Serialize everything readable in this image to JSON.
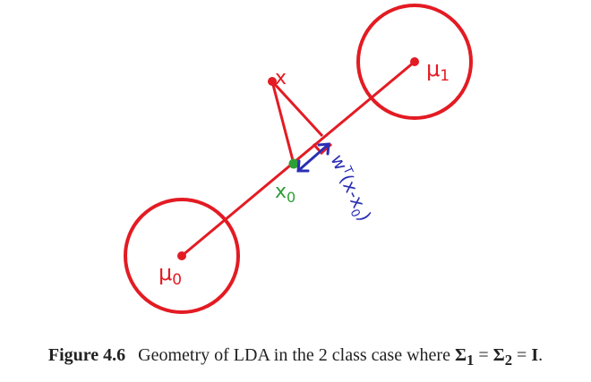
{
  "colors": {
    "red": "#e31b23",
    "green": "#2e9e36",
    "blue": "#2b2fb3",
    "caption": "#222222"
  },
  "diagram": {
    "mu0": "μ0",
    "mu1": "μ1",
    "x": "x",
    "x0": "x0",
    "projection": "wT(x-x0)"
  },
  "caption": {
    "figure_label": "Figure 4.6",
    "text": "Geometry of LDA in the 2 class case where",
    "sigma1": "Σ1",
    "eq1": "=",
    "sigma2": "Σ2",
    "eq2": "=",
    "identity": "I",
    "period": "."
  }
}
